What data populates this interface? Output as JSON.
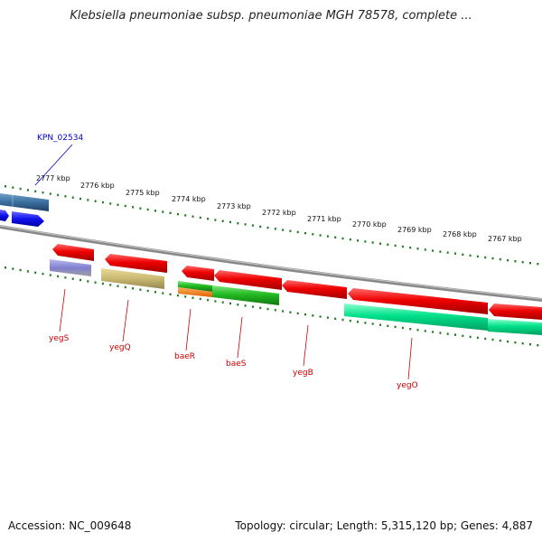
{
  "title": "Klebsiella pneumoniae subsp. pneumoniae MGH 78578, complete ...",
  "footer": {
    "accession": "Accession: NC_009648",
    "summary": "Topology: circular; Length: 5,315,120 bp; Genes: 4,887"
  },
  "ruler": {
    "ticks": [
      "2777 kbp",
      "2776 kbp",
      "2775 kbp",
      "2774 kbp",
      "2773 kbp",
      "2772 kbp",
      "2771 kbp",
      "2770 kbp",
      "2769 kbp",
      "2768 kbp",
      "2767 kbp"
    ]
  },
  "gene_labels": {
    "top": "KPN_02534",
    "bottom": [
      "yegS",
      "yegQ",
      "baeR",
      "baeS",
      "yegB",
      "yegO"
    ]
  },
  "colors": {
    "forward_gene": "#ff0000",
    "bottom_gene": "#00e08a",
    "ruler": "#1f7a1f",
    "label_red": "#cc0000",
    "label_blue": "#0000cc"
  }
}
